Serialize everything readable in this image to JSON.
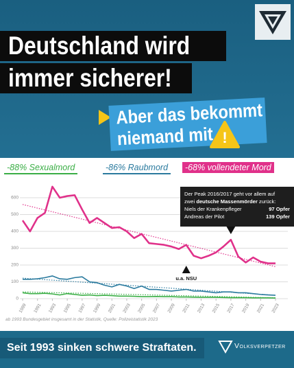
{
  "header": {
    "title_line1": "Deutschland wird",
    "title_line2": "immer sicherer!",
    "subtitle_line1": "Aber das bekommt",
    "subtitle_line2": "niemand mit",
    "warning": "!"
  },
  "chart_data": {
    "type": "line",
    "x": [
      1989,
      1990,
      1991,
      1992,
      1993,
      1994,
      1995,
      1996,
      1997,
      1998,
      1999,
      2000,
      2001,
      2002,
      2003,
      2004,
      2005,
      2006,
      2007,
      2008,
      2009,
      2010,
      2011,
      2012,
      2013,
      2014,
      2015,
      2016,
      2017,
      2018,
      2019,
      2020,
      2021,
      2022,
      2023
    ],
    "series": [
      {
        "name": "-88% Sexualmord",
        "color": "#3aae45",
        "values": [
          35,
          30,
          30,
          32,
          28,
          22,
          30,
          25,
          20,
          22,
          18,
          20,
          18,
          15,
          15,
          14,
          12,
          12,
          13,
          12,
          12,
          10,
          10,
          9,
          8,
          8,
          8,
          7,
          6,
          6,
          6,
          5,
          5,
          5,
          4
        ],
        "trend": {
          "x": [
            1989,
            2023
          ],
          "values": [
            40,
            5
          ]
        }
      },
      {
        "name": "-86% Raubmord",
        "color": "#2a7a9e",
        "values": [
          115,
          115,
          118,
          125,
          135,
          118,
          115,
          125,
          130,
          100,
          95,
          80,
          70,
          85,
          75,
          60,
          75,
          55,
          55,
          50,
          45,
          50,
          55,
          45,
          45,
          40,
          35,
          40,
          40,
          35,
          35,
          30,
          25,
          22,
          20
        ],
        "trend": {
          "x": [
            1989,
            2023
          ],
          "values": [
            122,
            20
          ]
        }
      },
      {
        "name": "-68% vollendeter Mord",
        "color": "#e0318a",
        "values": [
          465,
          400,
          480,
          510,
          666,
          600,
          610,
          615,
          530,
          450,
          480,
          450,
          420,
          425,
          400,
          360,
          385,
          330,
          325,
          320,
          310,
          295,
          320,
          255,
          240,
          255,
          275,
          310,
          350,
          250,
          215,
          245,
          220,
          210,
          210
        ],
        "trend": {
          "x": [
            1989,
            2023
          ],
          "values": [
            560,
            190
          ]
        }
      }
    ],
    "xlim": [
      1989,
      2023
    ],
    "xticks": [
      1989,
      1991,
      1993,
      1995,
      1997,
      1999,
      2001,
      2003,
      2005,
      2007,
      2009,
      2011,
      2013,
      2015,
      2017,
      2019,
      2021,
      2023
    ],
    "ylim": [
      0,
      700
    ],
    "yticks": [
      0,
      100,
      200,
      300,
      400,
      500,
      600
    ],
    "grid": true,
    "annotations": [
      {
        "x": 2011,
        "text": "u.a. NSU"
      },
      {
        "x": 2017
      }
    ]
  },
  "info": {
    "line1": "Der Peak 2016/2017 geht vor allem auf",
    "line2": [
      "zwei ",
      "deutsche Massenmörder",
      " zurück:"
    ],
    "rows": [
      [
        "Niels der Krankenpfleger",
        "97 Opfer"
      ],
      [
        "Andreas der Pilot",
        "139 Opfer"
      ]
    ]
  },
  "source": "ab 1993 Bundesgebiet insgesamt in der Statistik, Quelle: Polizeistatistik 2023",
  "footer": {
    "slogan": "Seit 1993 sinken schwere Straftaten.",
    "brand": "Volksverpetzer"
  }
}
